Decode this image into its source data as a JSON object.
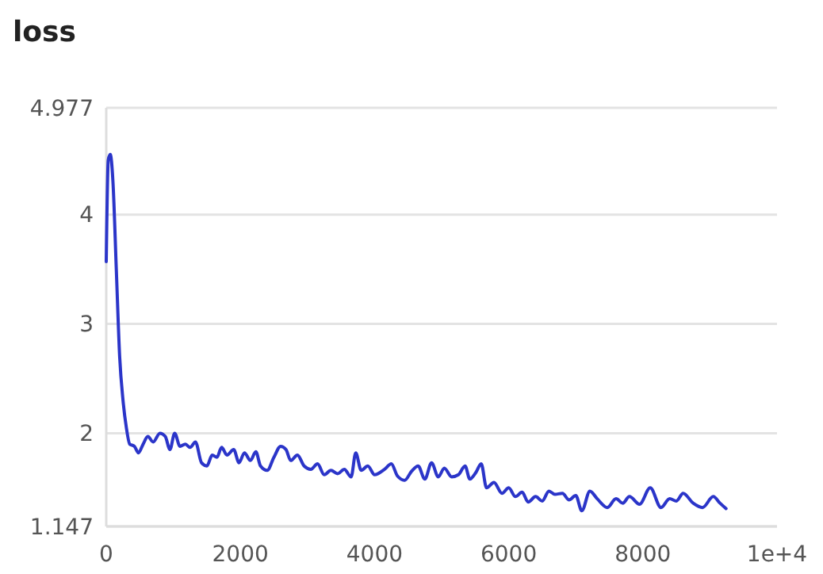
{
  "chart_data": {
    "type": "line",
    "title": "loss",
    "xlim": [
      0,
      10000
    ],
    "xticks": [
      0,
      2000,
      4000,
      6000,
      8000,
      {
        "value": 10000,
        "label": "1e+4"
      }
    ],
    "ylim": [
      1.147,
      4.977
    ],
    "yticks": [
      1.147,
      2,
      3,
      4,
      4.977
    ],
    "grid": "y",
    "series": [
      {
        "color": "#2b35c9",
        "x": [
          0,
          30,
          60,
          100,
          150,
          200,
          250,
          300,
          350,
          420,
          480,
          550,
          620,
          700,
          800,
          880,
          950,
          1020,
          1100,
          1180,
          1250,
          1330,
          1420,
          1500,
          1580,
          1650,
          1720,
          1800,
          1900,
          1980,
          2060,
          2150,
          2230,
          2300,
          2400,
          2500,
          2600,
          2680,
          2750,
          2850,
          2950,
          3050,
          3150,
          3250,
          3350,
          3450,
          3550,
          3650,
          3720,
          3800,
          3900,
          4000,
          4150,
          4250,
          4340,
          4450,
          4550,
          4650,
          4750,
          4850,
          4950,
          5040,
          5150,
          5250,
          5350,
          5420,
          5510,
          5590,
          5670,
          5780,
          5900,
          6000,
          6100,
          6200,
          6290,
          6400,
          6500,
          6600,
          6690,
          6800,
          6900,
          7000,
          7090,
          7210,
          7320,
          7470,
          7600,
          7700,
          7800,
          7950,
          8110,
          8270,
          8400,
          8500,
          8600,
          8750,
          8890,
          9050,
          9150,
          9240
        ],
        "values": [
          3.57,
          4.5,
          4.55,
          4.3,
          3.5,
          2.7,
          2.3,
          2.05,
          1.9,
          1.88,
          1.82,
          1.9,
          1.97,
          1.92,
          2.0,
          1.97,
          1.85,
          2.0,
          1.88,
          1.9,
          1.87,
          1.92,
          1.73,
          1.7,
          1.8,
          1.78,
          1.87,
          1.8,
          1.85,
          1.73,
          1.82,
          1.75,
          1.83,
          1.7,
          1.66,
          1.78,
          1.88,
          1.85,
          1.75,
          1.8,
          1.7,
          1.67,
          1.72,
          1.62,
          1.66,
          1.63,
          1.67,
          1.6,
          1.82,
          1.66,
          1.7,
          1.62,
          1.67,
          1.72,
          1.61,
          1.57,
          1.65,
          1.7,
          1.58,
          1.73,
          1.6,
          1.68,
          1.6,
          1.62,
          1.7,
          1.58,
          1.64,
          1.72,
          1.5,
          1.55,
          1.45,
          1.5,
          1.42,
          1.46,
          1.37,
          1.42,
          1.38,
          1.47,
          1.44,
          1.45,
          1.39,
          1.43,
          1.29,
          1.47,
          1.4,
          1.32,
          1.4,
          1.36,
          1.42,
          1.35,
          1.5,
          1.32,
          1.4,
          1.38,
          1.45,
          1.36,
          1.32,
          1.42,
          1.36,
          1.31
        ]
      }
    ]
  }
}
